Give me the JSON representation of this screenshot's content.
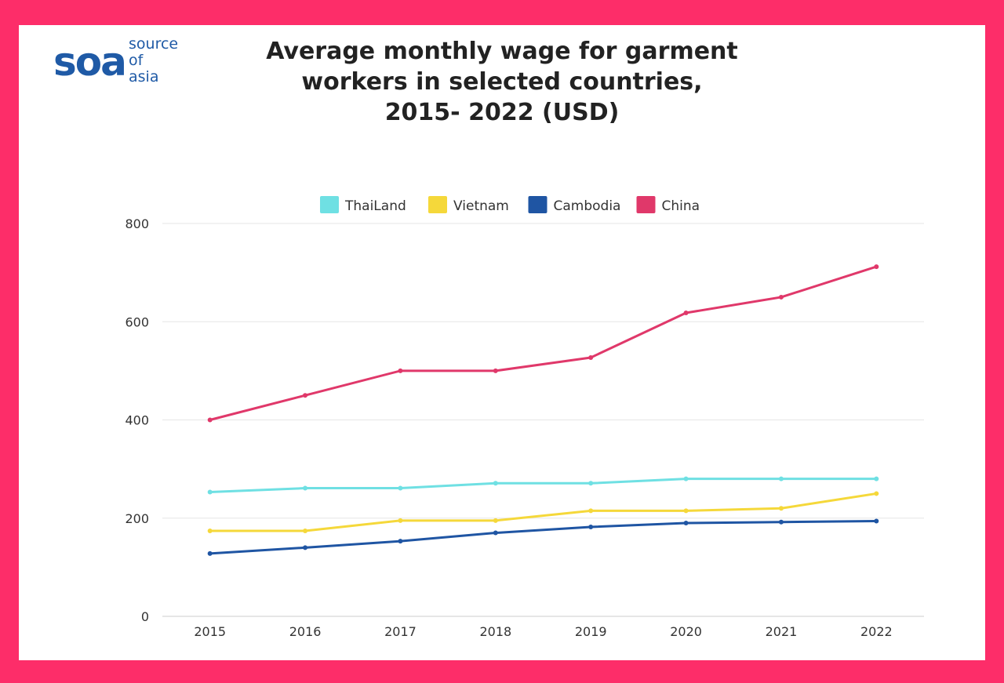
{
  "colors": {
    "frame": "#fd2d69",
    "card": "#ffffff",
    "brand": "#1f5aa6",
    "grid": "#e6e6e6",
    "axis_line": "#cccccc",
    "tick_text": "#333333"
  },
  "logo": {
    "mark": "soa",
    "lines": [
      "source",
      "of",
      "asia"
    ],
    "icon": "soa-logo-mark"
  },
  "title_lines": [
    "Average monthly wage for garment",
    "workers in selected countries,",
    "2015- 2022 (USD)"
  ],
  "chart_data": {
    "type": "line",
    "title": "Average monthly wage for garment workers in selected countries, 2015- 2022 (USD)",
    "x": [
      "2015",
      "2016",
      "2017",
      "2018",
      "2019",
      "2020",
      "2021",
      "2022"
    ],
    "ylim": [
      0,
      800
    ],
    "yticks": [
      0,
      200,
      400,
      600,
      800
    ],
    "grid": true,
    "legend_position": "top",
    "xlabel": "",
    "ylabel": "",
    "series": [
      {
        "name": "ThaiLand",
        "color": "#6fe0e3",
        "values": [
          253,
          261,
          261,
          271,
          271,
          280,
          280,
          280
        ]
      },
      {
        "name": "Vietnam",
        "color": "#f5d83a",
        "values": [
          174,
          174,
          195,
          195,
          215,
          215,
          220,
          250
        ]
      },
      {
        "name": "Cambodia",
        "color": "#1f55a3",
        "values": [
          128,
          140,
          153,
          170,
          182,
          190,
          192,
          194
        ]
      },
      {
        "name": "China",
        "color": "#e0386a",
        "values": [
          400,
          450,
          500,
          500,
          527,
          618,
          650,
          712
        ]
      }
    ]
  }
}
